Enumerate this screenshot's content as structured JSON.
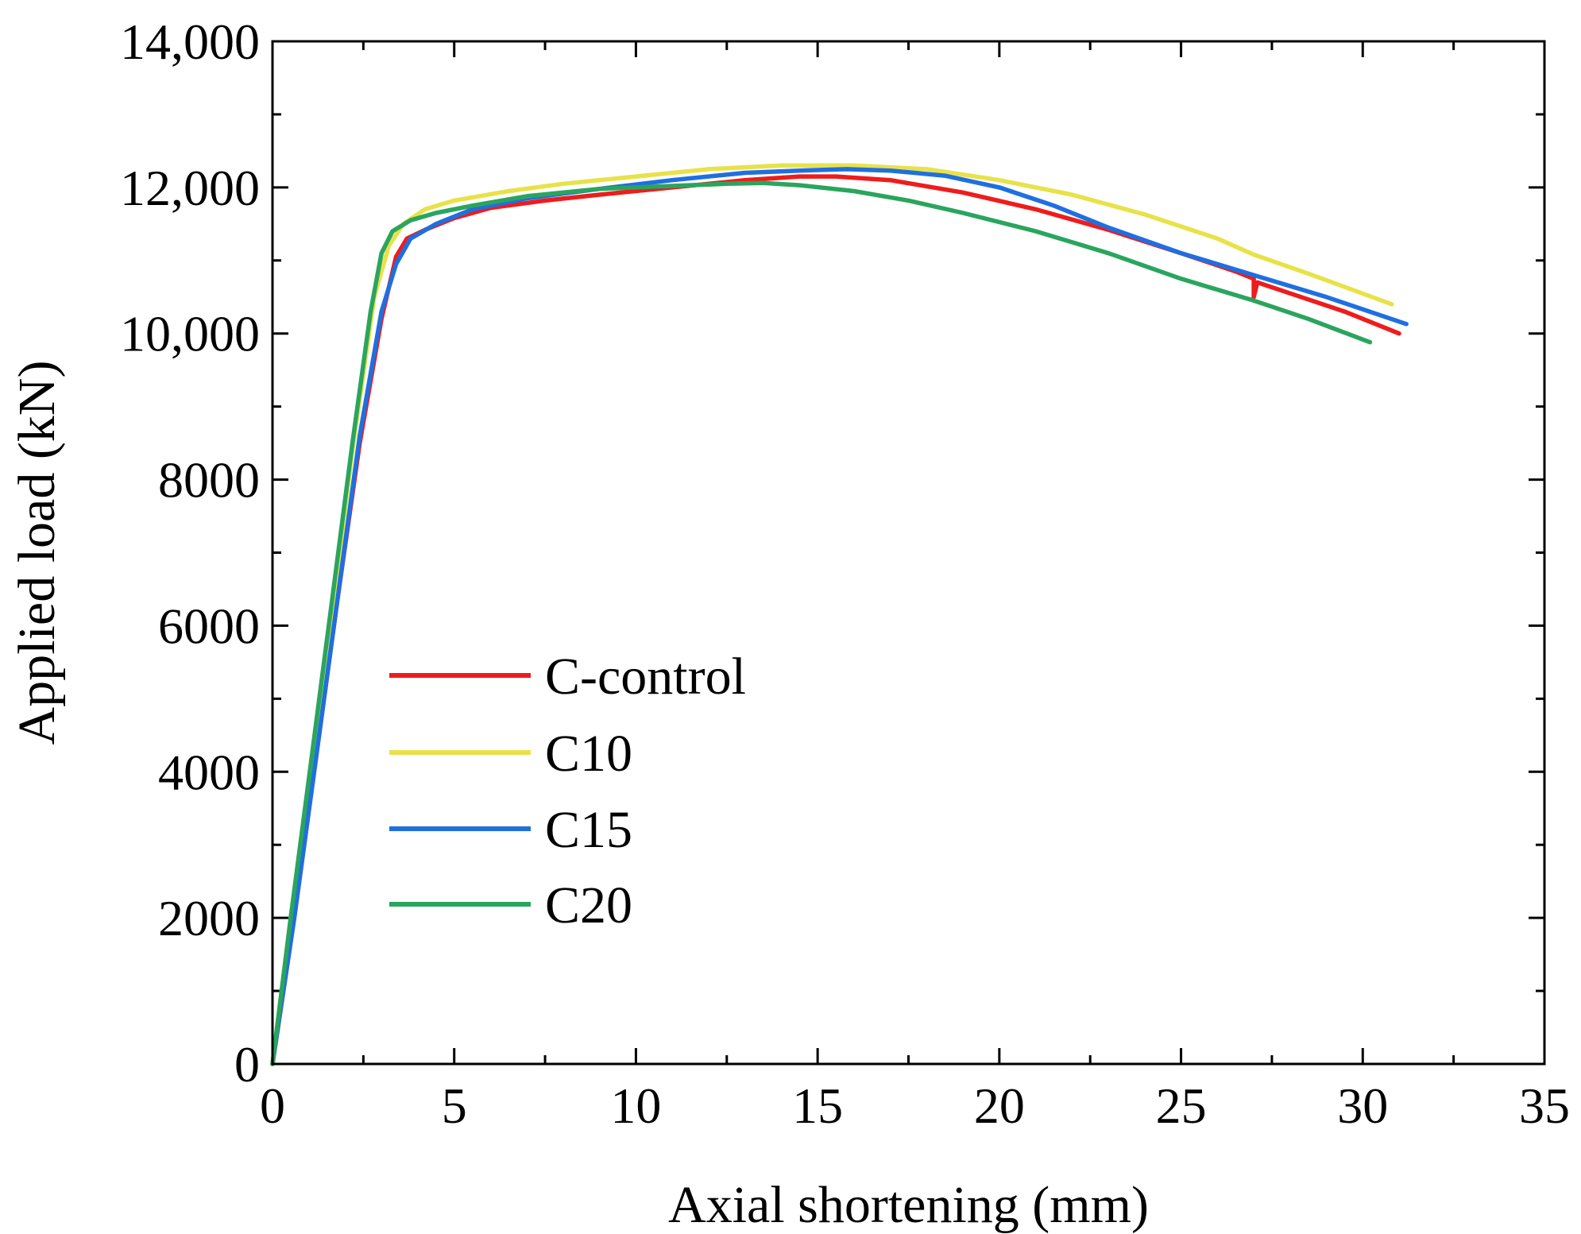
{
  "chart_data": {
    "type": "line",
    "title": "",
    "xlabel": "Axial shortening (mm)",
    "ylabel": "Applied load (kN)",
    "xlim": [
      0,
      35
    ],
    "ylim": [
      0,
      14000
    ],
    "grid": false,
    "legend": "center-left",
    "x_ticks": [
      0,
      5,
      10,
      15,
      20,
      25,
      30,
      35
    ],
    "x_tick_labels": [
      "0",
      "5",
      "10",
      "15",
      "20",
      "25",
      "30",
      "35"
    ],
    "y_ticks": [
      0,
      2000,
      4000,
      6000,
      8000,
      10000,
      12000,
      14000
    ],
    "y_tick_labels": [
      "0",
      "2000",
      "4000",
      "6000",
      "8000",
      "10,000",
      "12,000",
      "14,000"
    ],
    "series": [
      {
        "name": "C-control",
        "color": "#ee1c1c",
        "x": [
          0,
          0.6,
          1.2,
          1.8,
          2.4,
          3.0,
          3.4,
          3.7,
          4.2,
          5.0,
          6.0,
          7.5,
          9.0,
          11.0,
          13.0,
          14.5,
          15.5,
          17.0,
          19.0,
          21.0,
          23.0,
          25.0,
          26.5,
          27.0,
          27.0,
          27.1,
          28.0,
          29.5,
          31.0
        ],
        "y": [
          0,
          2000,
          4200,
          6400,
          8500,
          10200,
          11050,
          11300,
          11420,
          11580,
          11720,
          11820,
          11900,
          12000,
          12100,
          12150,
          12150,
          12100,
          11930,
          11700,
          11420,
          11100,
          10850,
          10750,
          10500,
          10700,
          10550,
          10300,
          10000
        ]
      },
      {
        "name": "C10",
        "color": "#e8e24a",
        "x": [
          0,
          0.5,
          1.0,
          1.6,
          2.2,
          2.8,
          3.2,
          3.6,
          4.2,
          5.0,
          6.5,
          8.0,
          10.0,
          12.0,
          14.0,
          16.0,
          18.0,
          20.0,
          22.0,
          24.0,
          26.0,
          27.0,
          28.5,
          30.8
        ],
        "y": [
          0,
          2000,
          3800,
          6000,
          8400,
          10500,
          11200,
          11500,
          11700,
          11820,
          11950,
          12050,
          12150,
          12250,
          12300,
          12300,
          12250,
          12100,
          11900,
          11630,
          11300,
          11080,
          10820,
          10400
        ]
      },
      {
        "name": "C15",
        "color": "#1f6fe0",
        "x": [
          0,
          0.6,
          1.2,
          1.8,
          2.4,
          3.0,
          3.4,
          3.8,
          4.5,
          5.5,
          7.0,
          9.0,
          11.0,
          13.0,
          14.5,
          15.8,
          17.0,
          18.5,
          20.0,
          21.5,
          23.0,
          25.0,
          27.0,
          29.0,
          31.2
        ],
        "y": [
          0,
          2000,
          4200,
          6400,
          8600,
          10300,
          10950,
          11300,
          11500,
          11700,
          11850,
          11980,
          12100,
          12200,
          12230,
          12250,
          12230,
          12160,
          12000,
          11750,
          11450,
          11100,
          10800,
          10500,
          10130
        ]
      },
      {
        "name": "C20",
        "color": "#2aa55e",
        "x": [
          0,
          0.5,
          1.0,
          1.6,
          2.2,
          2.7,
          3.0,
          3.3,
          3.8,
          4.5,
          5.5,
          7.0,
          9.0,
          11.0,
          12.5,
          13.5,
          14.5,
          16.0,
          17.5,
          19.0,
          21.0,
          23.0,
          25.0,
          27.0,
          28.5,
          30.2
        ],
        "y": [
          0,
          2000,
          3900,
          6200,
          8500,
          10300,
          11100,
          11400,
          11550,
          11650,
          11750,
          11880,
          11980,
          12020,
          12050,
          12060,
          12030,
          11950,
          11820,
          11650,
          11400,
          11100,
          10750,
          10450,
          10200,
          9880
        ]
      }
    ]
  }
}
